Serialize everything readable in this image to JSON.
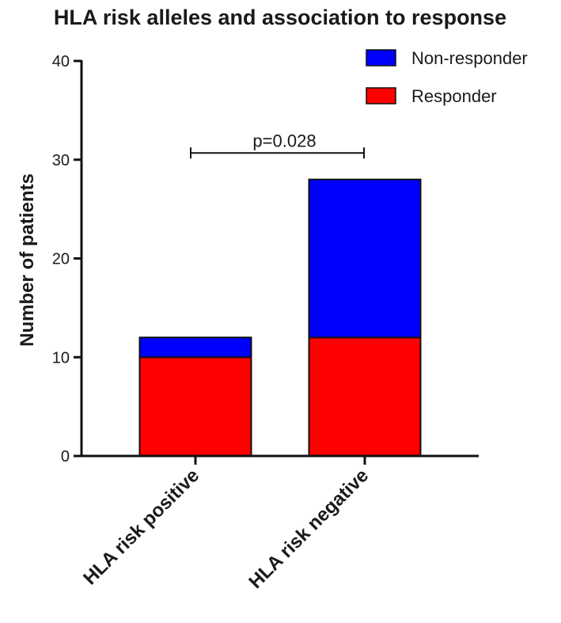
{
  "chart_data": {
    "type": "bar",
    "stacked": true,
    "title": "HLA risk alleles and association to response",
    "ylabel": "Number of patients",
    "xlabel": "",
    "categories": [
      "HLA risk positive",
      "HLA risk negative"
    ],
    "series": [
      {
        "name": "Responder",
        "values": [
          10,
          12
        ],
        "color": "#ff0000"
      },
      {
        "name": "Non-responder",
        "values": [
          2,
          16
        ],
        "color": "#0000ff"
      }
    ],
    "ylim": [
      0,
      40
    ],
    "yticks": [
      "0",
      "10",
      "20",
      "30",
      "40"
    ],
    "grid": false,
    "legend_position": "top-right",
    "legend_order": [
      "Non-responder",
      "Responder"
    ],
    "annotation": {
      "text": "p=0.028",
      "y": 31
    }
  }
}
